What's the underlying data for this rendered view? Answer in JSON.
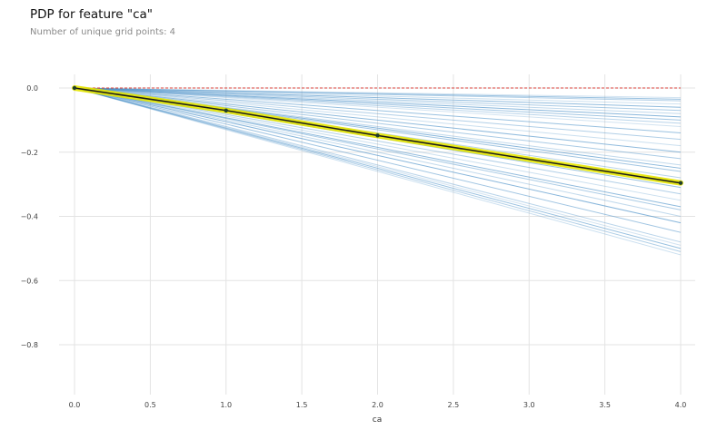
{
  "title": "PDP for feature \"ca\"",
  "subtitle": "Number of unique grid points: 4",
  "chart_data": {
    "type": "line",
    "title": "PDP for feature \"ca\"",
    "subtitle": "Number of unique grid points: 4",
    "xlabel": "ca",
    "ylabel": "",
    "x": [
      0,
      1,
      2,
      3,
      4
    ],
    "xlim": [
      -0.25,
      4.1
    ],
    "ylim": [
      -0.97,
      0.05
    ],
    "x_ticks": [
      "0.0",
      "0.5",
      "1.0",
      "1.5",
      "2.0",
      "2.5",
      "3.0",
      "3.5",
      "4.0"
    ],
    "x_tick_values": [
      0,
      0.5,
      1,
      1.5,
      2,
      2.5,
      3,
      3.5,
      4
    ],
    "y_ticks": [
      "0.0",
      "−0.2",
      "−0.4",
      "−0.6",
      "−0.8"
    ],
    "y_tick_values": [
      0,
      -0.2,
      -0.4,
      -0.6,
      -0.8
    ],
    "grid": true,
    "pdp_series": {
      "x": [
        0,
        1,
        2,
        4
      ],
      "values": [
        0.0,
        -0.07,
        -0.148,
        -0.296
      ],
      "line_color": "#1a1a1a",
      "highlight_color": "#e5e500"
    },
    "reference_line": {
      "y": 0.0,
      "color": "#d9413a",
      "style": "dashed"
    },
    "ice_lines": {
      "color": "#4a90c8",
      "end_values": [
        -0.03,
        -0.035,
        -0.04,
        -0.05,
        -0.06,
        -0.07,
        -0.08,
        -0.09,
        -0.1,
        -0.11,
        -0.12,
        -0.14,
        -0.16,
        -0.18,
        -0.2,
        -0.22,
        -0.24,
        -0.25,
        -0.26,
        -0.28,
        -0.3,
        -0.31,
        -0.33,
        -0.35,
        -0.37,
        -0.38,
        -0.4,
        -0.42,
        -0.45,
        -0.48,
        -0.49,
        -0.5,
        -0.51,
        -0.52
      ]
    }
  }
}
